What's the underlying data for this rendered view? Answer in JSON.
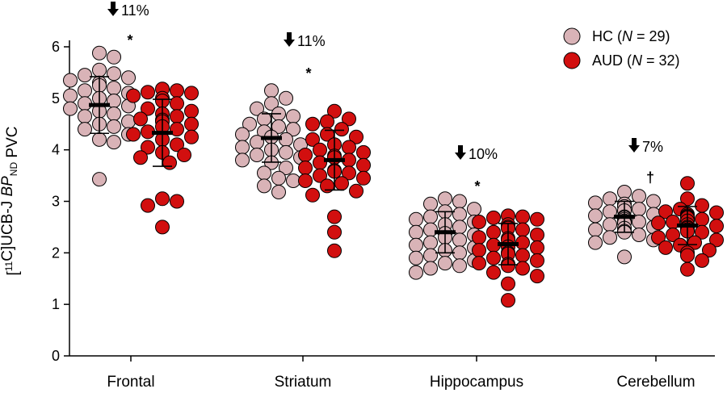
{
  "chart_data": {
    "type": "scatter",
    "ylabel": {
      "prefix": "[",
      "sup": "11",
      "mid": "C]UCB-J ",
      "italic": "BP",
      "sub": "ND",
      "suffix": " PVC"
    },
    "ylim": [
      0,
      6
    ],
    "yticks": [
      "0",
      "1",
      "2",
      "3",
      "4",
      "5",
      "6"
    ],
    "categories": [
      "Frontal",
      "Striatum",
      "Hippocampus",
      "Cerebellum"
    ],
    "legend": {
      "placement": "top-right",
      "entries": [
        {
          "group": "HC",
          "n_label": "N",
          "n_value": "29"
        },
        {
          "group": "AUD",
          "n_label": "N",
          "n_value": "32"
        }
      ]
    },
    "colors": {
      "HC": "#d9b3b7",
      "AUD": "#d20f0f"
    },
    "annotations": [
      {
        "change": "11%",
        "sig": "*"
      },
      {
        "change": "11%",
        "sig": "*"
      },
      {
        "change": "10%",
        "sig": "*"
      },
      {
        "change": "7%",
        "sig": "†"
      }
    ],
    "series": [
      {
        "name": "HC",
        "summary": [
          {
            "mean": 4.87,
            "sd": 0.55
          },
          {
            "mean": 4.23,
            "sd": 0.47
          },
          {
            "mean": 2.4,
            "sd": 0.4
          },
          {
            "mean": 2.7,
            "sd": 0.3
          }
        ],
        "values": [
          [
            5.88,
            5.8,
            5.55,
            5.48,
            5.45,
            5.4,
            5.35,
            5.3,
            5.25,
            5.2,
            5.15,
            5.1,
            5.05,
            5.0,
            4.95,
            4.9,
            4.85,
            4.8,
            4.75,
            4.7,
            4.65,
            4.55,
            4.5,
            4.45,
            4.4,
            4.3,
            4.2,
            4.15,
            3.43
          ],
          [
            5.15,
            5.0,
            4.9,
            4.8,
            4.7,
            4.65,
            4.6,
            4.5,
            4.45,
            4.4,
            4.35,
            4.3,
            4.25,
            4.2,
            4.15,
            4.1,
            4.05,
            4.0,
            3.95,
            3.9,
            3.85,
            3.8,
            3.75,
            3.65,
            3.55,
            3.45,
            3.4,
            3.3,
            3.18
          ],
          [
            3.05,
            3.0,
            2.95,
            2.85,
            2.8,
            2.75,
            2.7,
            2.65,
            2.6,
            2.55,
            2.5,
            2.45,
            2.4,
            2.38,
            2.35,
            2.3,
            2.25,
            2.2,
            2.15,
            2.1,
            2.05,
            2.0,
            1.95,
            1.9,
            1.85,
            1.8,
            1.75,
            1.7,
            1.62
          ],
          [
            3.18,
            3.1,
            3.05,
            3.0,
            2.97,
            2.95,
            2.9,
            2.85,
            2.82,
            2.8,
            2.75,
            2.72,
            2.7,
            2.68,
            2.65,
            2.62,
            2.6,
            2.58,
            2.55,
            2.5,
            2.48,
            2.45,
            2.42,
            2.4,
            2.35,
            2.3,
            2.25,
            2.2,
            1.92
          ]
        ]
      },
      {
        "name": "AUD",
        "summary": [
          {
            "mean": 4.33,
            "sd": 0.65
          },
          {
            "mean": 3.8,
            "sd": 0.58
          },
          {
            "mean": 2.17,
            "sd": 0.4
          },
          {
            "mean": 2.53,
            "sd": 0.37
          }
        ],
        "values": [
          [
            5.18,
            5.15,
            5.12,
            5.1,
            5.05,
            5.0,
            4.95,
            4.9,
            4.8,
            4.75,
            4.7,
            4.65,
            4.6,
            4.58,
            4.55,
            4.5,
            4.45,
            4.4,
            4.35,
            4.3,
            4.25,
            4.2,
            4.1,
            4.05,
            3.95,
            3.9,
            3.85,
            3.75,
            3.05,
            3.0,
            2.92,
            2.5
          ],
          [
            4.75,
            4.6,
            4.55,
            4.5,
            4.4,
            4.3,
            4.25,
            4.2,
            4.1,
            4.05,
            4.0,
            3.95,
            3.9,
            3.88,
            3.85,
            3.8,
            3.75,
            3.7,
            3.65,
            3.6,
            3.58,
            3.55,
            3.5,
            3.45,
            3.4,
            3.35,
            3.3,
            3.2,
            3.12,
            2.7,
            2.4,
            2.04
          ],
          [
            2.72,
            2.7,
            2.68,
            2.65,
            2.6,
            2.55,
            2.5,
            2.48,
            2.45,
            2.4,
            2.35,
            2.3,
            2.28,
            2.25,
            2.2,
            2.15,
            2.12,
            2.1,
            2.05,
            2.0,
            1.98,
            1.95,
            1.9,
            1.85,
            1.8,
            1.78,
            1.75,
            1.7,
            1.62,
            1.55,
            1.4,
            1.08
          ],
          [
            3.35,
            3.05,
            2.92,
            2.85,
            2.8,
            2.78,
            2.75,
            2.72,
            2.7,
            2.68,
            2.65,
            2.62,
            2.6,
            2.58,
            2.55,
            2.52,
            2.5,
            2.48,
            2.45,
            2.42,
            2.4,
            2.35,
            2.3,
            2.25,
            2.2,
            2.15,
            2.1,
            2.05,
            2.0,
            1.95,
            1.85,
            1.68
          ]
        ]
      }
    ]
  }
}
